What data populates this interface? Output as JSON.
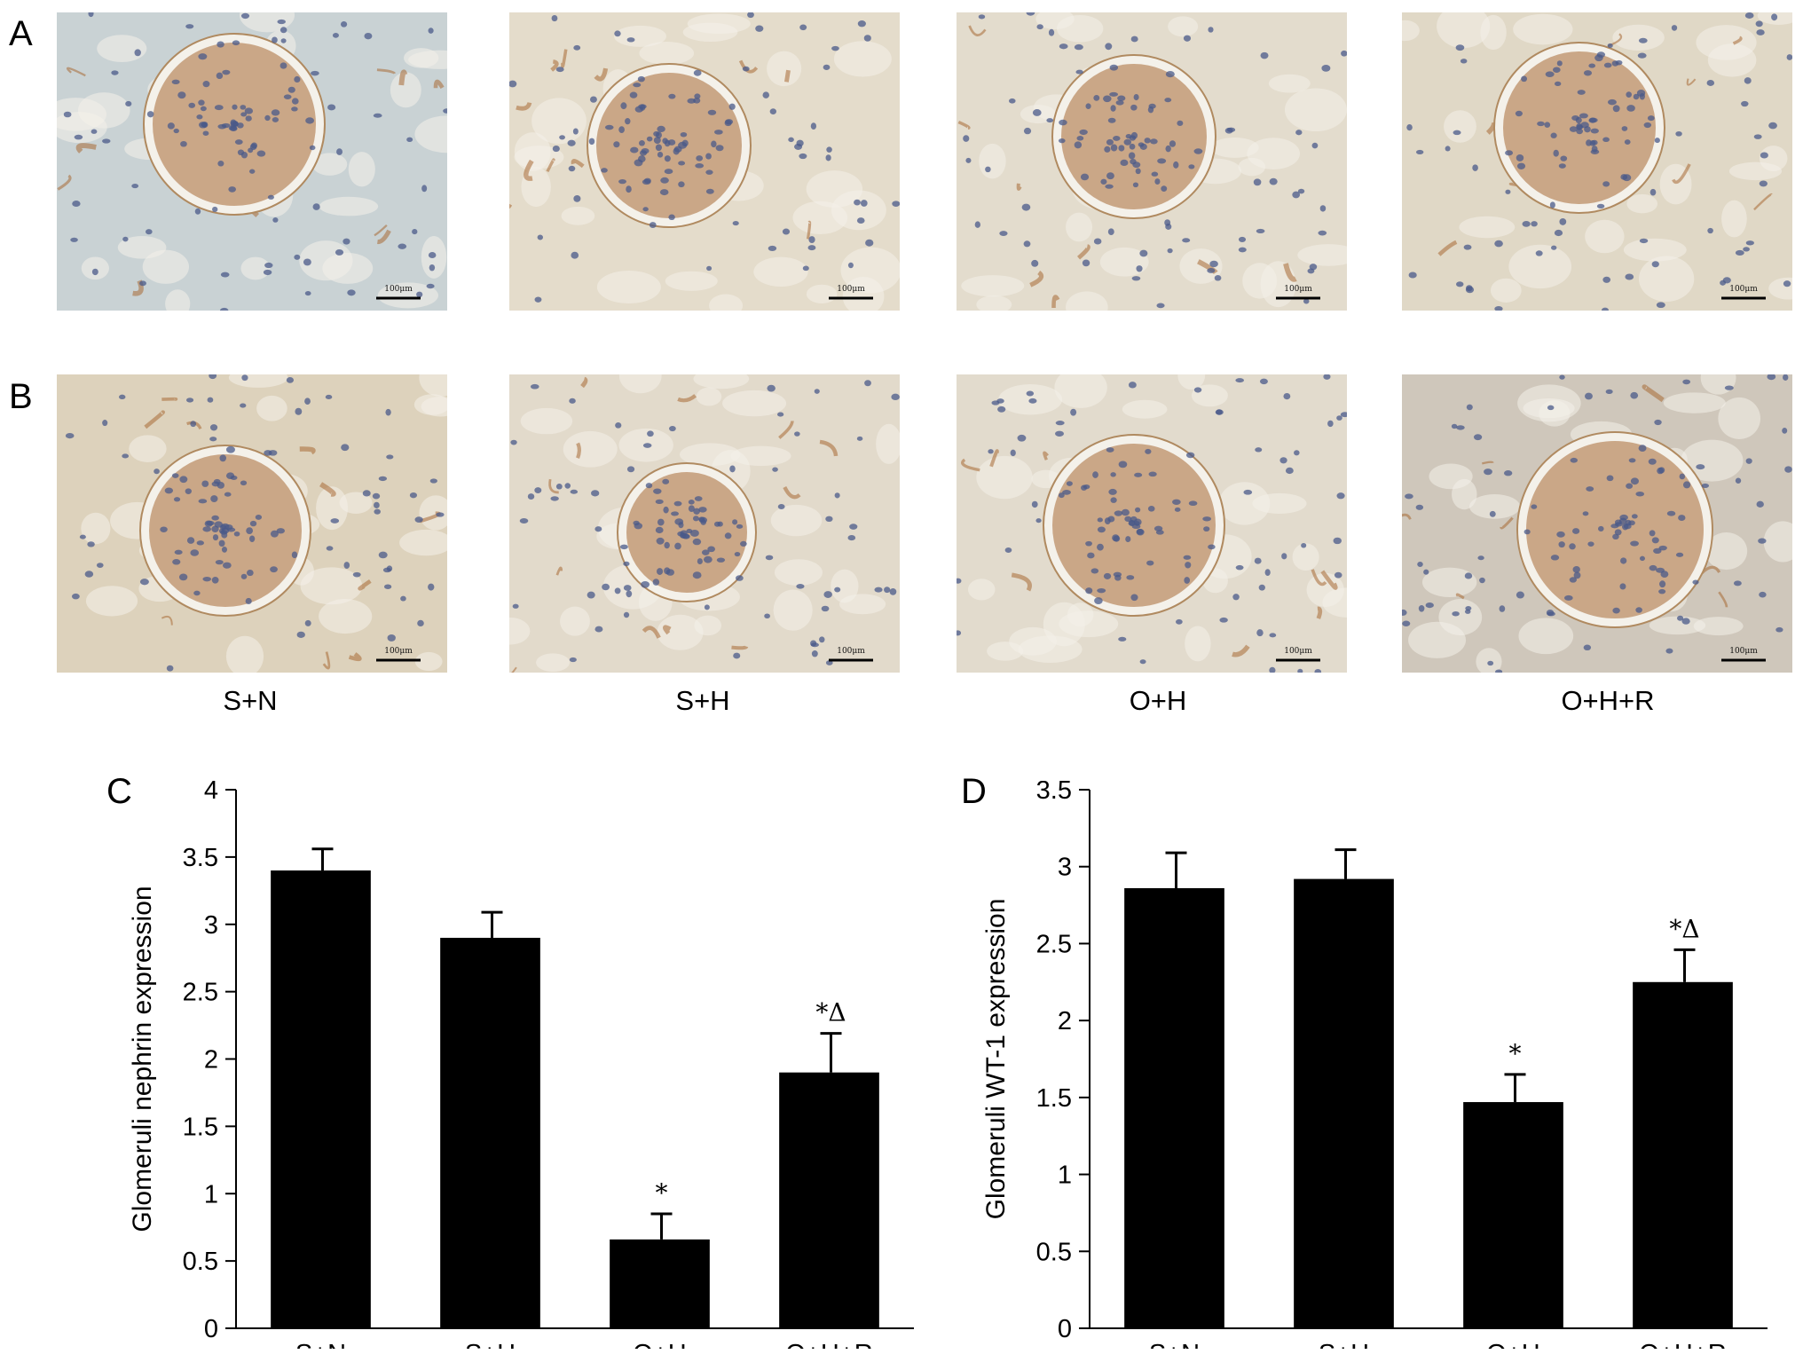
{
  "figure": {
    "panel_letters": [
      "A",
      "B",
      "C",
      "D"
    ],
    "groups": [
      "S+N",
      "S+H",
      "O+H",
      "O+H+R"
    ],
    "scale_bar_label": "100μm",
    "stain_colors": {
      "background_tubule": "#d9d2c4",
      "nuclei": "#4a5a8a",
      "brown_stain": "#a86a35",
      "bowman_space": "#f4f1ea"
    },
    "micrographs": {
      "A": [
        {
          "group": "S+N",
          "tint": "#c9d2d4"
        },
        {
          "group": "S+H",
          "tint": "#e4dccb"
        },
        {
          "group": "O+H",
          "tint": "#e3dccd"
        },
        {
          "group": "O+H+R",
          "tint": "#e0d8c6"
        }
      ],
      "B": [
        {
          "group": "S+N",
          "tint": "#ddd2bc"
        },
        {
          "group": "S+H",
          "tint": "#e2dacb"
        },
        {
          "group": "O+H",
          "tint": "#e2dbcd"
        },
        {
          "group": "O+H+R",
          "tint": "#cfc7bb"
        }
      ]
    }
  },
  "chart_data": [
    {
      "panel": "C",
      "type": "bar",
      "categories": [
        "S+N",
        "S+H",
        "O+H",
        "O+H+R"
      ],
      "values": [
        3.4,
        2.9,
        0.66,
        1.9
      ],
      "errors": [
        0.16,
        0.19,
        0.19,
        0.29
      ],
      "annotations": [
        "",
        "",
        "*",
        "*Δ"
      ],
      "title": "",
      "xlabel": "",
      "ylabel": "Glomeruli nephrin expression",
      "ylim": [
        0,
        4
      ],
      "yticks": [
        "0",
        "0.5",
        "1",
        "1.5",
        "2",
        "2.5",
        "3",
        "3.5",
        "4"
      ],
      "bar_color": "#000000",
      "grid": false
    },
    {
      "panel": "D",
      "type": "bar",
      "categories": [
        "S+N",
        "S+H",
        "O+H",
        "O+H+R"
      ],
      "values": [
        2.86,
        2.92,
        1.47,
        2.25
      ],
      "errors": [
        0.23,
        0.19,
        0.18,
        0.21
      ],
      "annotations": [
        "",
        "",
        "*",
        "*Δ"
      ],
      "title": "",
      "xlabel": "",
      "ylabel": "Glomeruli WT-1 expression",
      "ylim": [
        0,
        3.5
      ],
      "yticks": [
        "0",
        "0.5",
        "1",
        "1.5",
        "2",
        "2.5",
        "3",
        "3.5"
      ],
      "bar_color": "#000000",
      "grid": false
    }
  ]
}
